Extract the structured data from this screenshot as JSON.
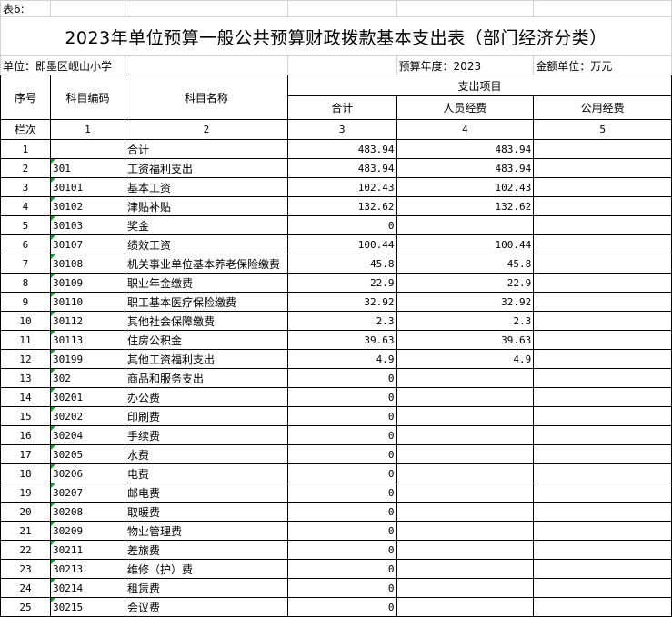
{
  "sheet_label": "表6:",
  "title": "2023年单位预算一般公共预算财政拨款基本支出表（部门经济分类）",
  "unit": "单位：即墨区岘山小学",
  "budget_year": "预算年度：2023",
  "amount_unit": "金额单位：万元",
  "headers": {
    "seq": "序号",
    "code": "科目编码",
    "name": "科目名称",
    "expense_items": "支出项目",
    "total": "合计",
    "personnel": "人员经费",
    "public": "公用经费"
  },
  "column_index": {
    "label": "栏次",
    "c1": "1",
    "c2": "2",
    "c3": "3",
    "c4": "4",
    "c5": "5"
  },
  "rows": [
    {
      "seq": "1",
      "code": "",
      "name": "合计",
      "total": "483.94",
      "personnel": "483.94",
      "public": ""
    },
    {
      "seq": "2",
      "code": "301",
      "name": "工资福利支出",
      "total": "483.94",
      "personnel": "483.94",
      "public": ""
    },
    {
      "seq": "3",
      "code": "30101",
      "name": "基本工资",
      "total": "102.43",
      "personnel": "102.43",
      "public": ""
    },
    {
      "seq": "4",
      "code": "30102",
      "name": "津贴补贴",
      "total": "132.62",
      "personnel": "132.62",
      "public": ""
    },
    {
      "seq": "5",
      "code": "30103",
      "name": "奖金",
      "total": "0",
      "personnel": "",
      "public": ""
    },
    {
      "seq": "6",
      "code": "30107",
      "name": "绩效工资",
      "total": "100.44",
      "personnel": "100.44",
      "public": ""
    },
    {
      "seq": "7",
      "code": "30108",
      "name": "机关事业单位基本养老保险缴费",
      "total": "45.8",
      "personnel": "45.8",
      "public": ""
    },
    {
      "seq": "8",
      "code": "30109",
      "name": "职业年金缴费",
      "total": "22.9",
      "personnel": "22.9",
      "public": ""
    },
    {
      "seq": "9",
      "code": "30110",
      "name": "职工基本医疗保险缴费",
      "total": "32.92",
      "personnel": "32.92",
      "public": ""
    },
    {
      "seq": "10",
      "code": "30112",
      "name": "其他社会保障缴费",
      "total": "2.3",
      "personnel": "2.3",
      "public": ""
    },
    {
      "seq": "11",
      "code": "30113",
      "name": "住房公积金",
      "total": "39.63",
      "personnel": "39.63",
      "public": ""
    },
    {
      "seq": "12",
      "code": "30199",
      "name": "其他工资福利支出",
      "total": "4.9",
      "personnel": "4.9",
      "public": ""
    },
    {
      "seq": "13",
      "code": "302",
      "name": "商品和服务支出",
      "total": "0",
      "personnel": "",
      "public": ""
    },
    {
      "seq": "14",
      "code": "30201",
      "name": "办公费",
      "total": "0",
      "personnel": "",
      "public": ""
    },
    {
      "seq": "15",
      "code": "30202",
      "name": "印刷费",
      "total": "0",
      "personnel": "",
      "public": ""
    },
    {
      "seq": "16",
      "code": "30204",
      "name": "手续费",
      "total": "0",
      "personnel": "",
      "public": ""
    },
    {
      "seq": "17",
      "code": "30205",
      "name": "水费",
      "total": "0",
      "personnel": "",
      "public": ""
    },
    {
      "seq": "18",
      "code": "30206",
      "name": "电费",
      "total": "0",
      "personnel": "",
      "public": ""
    },
    {
      "seq": "19",
      "code": "30207",
      "name": "邮电费",
      "total": "0",
      "personnel": "",
      "public": ""
    },
    {
      "seq": "20",
      "code": "30208",
      "name": "取暖费",
      "total": "0",
      "personnel": "",
      "public": ""
    },
    {
      "seq": "21",
      "code": "30209",
      "name": "物业管理费",
      "total": "0",
      "personnel": "",
      "public": ""
    },
    {
      "seq": "22",
      "code": "30211",
      "name": "差旅费",
      "total": "0",
      "personnel": "",
      "public": ""
    },
    {
      "seq": "23",
      "code": "30213",
      "name": "维修（护）费",
      "total": "0",
      "personnel": "",
      "public": ""
    },
    {
      "seq": "24",
      "code": "30214",
      "name": "租赁费",
      "total": "0",
      "personnel": "",
      "public": ""
    },
    {
      "seq": "25",
      "code": "30215",
      "name": "会议费",
      "total": "0",
      "personnel": "",
      "public": ""
    }
  ]
}
